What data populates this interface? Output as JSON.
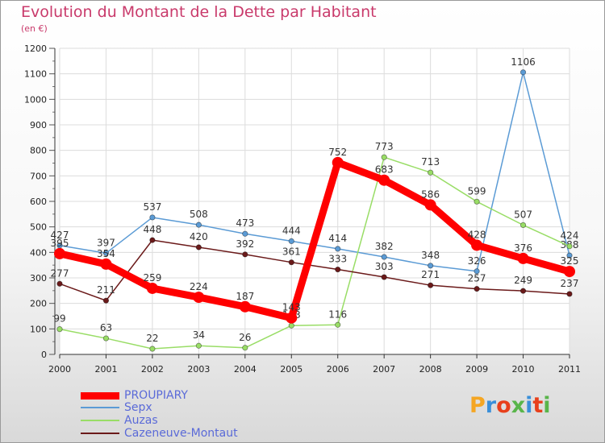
{
  "chart_data": {
    "type": "line",
    "title": "Evolution du Montant de la Dette par Habitant",
    "subtitle": "(en €)",
    "x": [
      "2000",
      "2001",
      "2002",
      "2003",
      "2004",
      "2005",
      "2006",
      "2007",
      "2008",
      "2009",
      "2010",
      "2011"
    ],
    "ylim": [
      0,
      1200
    ],
    "yticks": [
      0,
      100,
      200,
      300,
      400,
      500,
      600,
      700,
      800,
      900,
      1000,
      1100,
      1200
    ],
    "grid": true,
    "legend_position": "bottom-left",
    "series": [
      {
        "name": "PROUPIARY",
        "color": "#ff0000",
        "values": [
          395,
          354,
          259,
          224,
          187,
          143,
          752,
          683,
          586,
          428,
          376,
          325
        ]
      },
      {
        "name": "Sepx",
        "color": "#5b9bd5",
        "values": [
          427,
          397,
          537,
          508,
          473,
          444,
          414,
          382,
          348,
          326,
          1106,
          388
        ]
      },
      {
        "name": "Auzas",
        "color": "#99dd66",
        "values": [
          99,
          63,
          22,
          34,
          26,
          113,
          116,
          773,
          713,
          599,
          507,
          424
        ]
      },
      {
        "name": "Cazeneuve-Montaut",
        "color": "#6b1a1a",
        "values": [
          277,
          211,
          448,
          420,
          392,
          361,
          333,
          303,
          271,
          257,
          249,
          237
        ]
      }
    ]
  },
  "logo_text": "Proxiti",
  "logo_colors": [
    "#f5a623",
    "#3a8fd9",
    "#e8401c",
    "#59b54a",
    "#3a8fd9",
    "#e8401c",
    "#59b54a"
  ]
}
